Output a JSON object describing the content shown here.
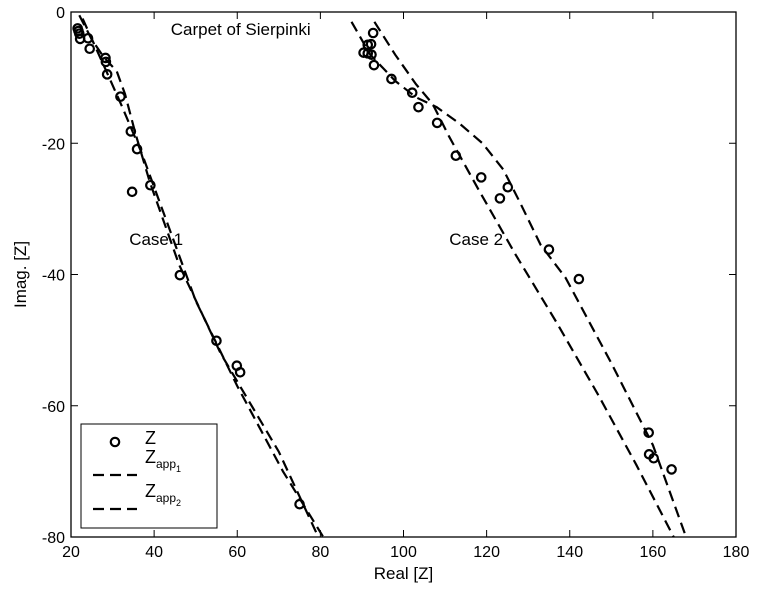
{
  "chart_data": {
    "type": "scatter",
    "xlabel": "Real [Z]",
    "ylabel": "Imag. [Z]",
    "xlim": [
      20,
      180
    ],
    "ylim": [
      -80,
      0
    ],
    "xticks": [
      20,
      40,
      60,
      80,
      100,
      120,
      140,
      160,
      180
    ],
    "yticks": [
      0,
      -20,
      -40,
      -60,
      -80
    ],
    "grid": false,
    "legend_placement": "bottom-left",
    "annotations": [
      {
        "text": "Carpet of Sierpinki",
        "x": 44,
        "y": -3.5
      },
      {
        "text": "Case 1",
        "x": 34,
        "y": -35.5
      },
      {
        "text": "Case 2",
        "x": 111,
        "y": -35.5
      }
    ],
    "legend": [
      {
        "main": "Z",
        "sub": "",
        "subsub": "",
        "marker": "circle"
      },
      {
        "main": "Z",
        "sub": "app",
        "subsub": "1",
        "marker": "dash"
      },
      {
        "main": "Z",
        "sub": "app",
        "subsub": "2",
        "marker": "dash"
      }
    ],
    "series": [
      {
        "name": "Z",
        "style": "circle",
        "points": [
          [
            21.6,
            -2.5
          ],
          [
            21.8,
            -2.9
          ],
          [
            22.0,
            -3.3
          ],
          [
            22.2,
            -4.1
          ],
          [
            24.1,
            -4.0
          ],
          [
            24.5,
            -5.6
          ],
          [
            28.3,
            -7.0
          ],
          [
            28.4,
            -7.6
          ],
          [
            28.7,
            -9.5
          ],
          [
            31.9,
            -12.9
          ],
          [
            34.4,
            -18.2
          ],
          [
            35.9,
            -20.9
          ],
          [
            34.7,
            -27.4
          ],
          [
            39.1,
            -26.4
          ],
          [
            46.2,
            -40.1
          ],
          [
            55.0,
            -50.1
          ],
          [
            59.9,
            -53.9
          ],
          [
            60.7,
            -54.9
          ],
          [
            75.0,
            -75.0
          ],
          [
            90.4,
            -6.2
          ],
          [
            91.4,
            -5.0
          ],
          [
            92.2,
            -4.9
          ],
          [
            92.7,
            -3.2
          ],
          [
            91.4,
            -6.3
          ],
          [
            92.3,
            -6.5
          ],
          [
            92.9,
            -8.1
          ],
          [
            97.1,
            -10.2
          ],
          [
            102.1,
            -12.3
          ],
          [
            103.6,
            -14.5
          ],
          [
            108.1,
            -16.9
          ],
          [
            112.6,
            -21.9
          ],
          [
            118.7,
            -25.2
          ],
          [
            123.2,
            -28.4
          ],
          [
            125.1,
            -26.7
          ],
          [
            135.0,
            -36.2
          ],
          [
            142.2,
            -40.7
          ],
          [
            159.0,
            -64.1
          ],
          [
            159.1,
            -67.4
          ],
          [
            160.2,
            -68.0
          ],
          [
            164.5,
            -69.7
          ]
        ]
      },
      {
        "name": "Z_app1",
        "style": "dashed",
        "segments": [
          [
            [
              22.0,
              -0.5
            ],
            [
              25.0,
              -4.2
            ],
            [
              28.0,
              -7.0
            ],
            [
              31.0,
              -9.0
            ],
            [
              33.0,
              -12.5
            ],
            [
              35.5,
              -18.5
            ],
            [
              39.0,
              -26.0
            ],
            [
              46.0,
              -38.5
            ],
            [
              56.0,
              -52.0
            ],
            [
              70.0,
              -67.0
            ],
            [
              79.5,
              -80.0
            ]
          ],
          [
            [
              22.8,
              -1.0
            ],
            [
              26.0,
              -5.5
            ],
            [
              28.5,
              -9.0
            ],
            [
              32.0,
              -14.0
            ],
            [
              37.0,
              -21.5
            ],
            [
              42.5,
              -31.0
            ],
            [
              50.0,
              -44.0
            ],
            [
              60.0,
              -57.0
            ],
            [
              71.0,
              -70.0
            ],
            [
              80.7,
              -80.0
            ]
          ]
        ]
      },
      {
        "name": "Z_app2",
        "style": "dashed",
        "segments": [
          [
            [
              87.5,
              -1.5
            ],
            [
              92.0,
              -6.5
            ],
            [
              98.0,
              -10.5
            ],
            [
              103.0,
              -13.0
            ],
            [
              108.0,
              -14.5
            ],
            [
              113.5,
              -17.0
            ],
            [
              119.0,
              -20.0
            ],
            [
              124.0,
              -24.0
            ],
            [
              128.0,
              -29.0
            ],
            [
              133.0,
              -35.5
            ],
            [
              139.0,
              -40.5
            ],
            [
              150.0,
              -53.5
            ],
            [
              160.0,
              -66.0
            ],
            [
              168.0,
              -80.0
            ]
          ],
          [
            [
              93.0,
              -1.5
            ],
            [
              98.0,
              -6.5
            ],
            [
              103.0,
              -11.0
            ],
            [
              107.0,
              -14.0
            ],
            [
              111.0,
              -19.0
            ],
            [
              118.0,
              -27.0
            ],
            [
              127.0,
              -37.0
            ],
            [
              137.0,
              -47.5
            ],
            [
              147.0,
              -58.5
            ],
            [
              156.0,
              -69.0
            ],
            [
              165.0,
              -80.0
            ]
          ]
        ]
      }
    ]
  }
}
